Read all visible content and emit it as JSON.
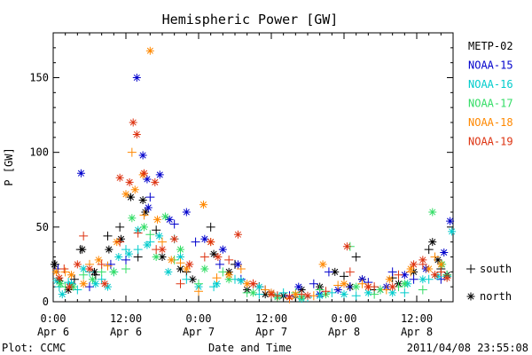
{
  "chart_data": {
    "type": "scatter",
    "title": "Hemispheric Power [GW]",
    "ylabel": "P [GW]",
    "xlabel": "Date and Time",
    "xlim_hours": [
      0,
      66
    ],
    "ylim": [
      0,
      180
    ],
    "yticks": [
      0,
      50,
      100,
      150
    ],
    "xticks": [
      {
        "h": 0,
        "time": "0:00",
        "date": "Apr 6"
      },
      {
        "h": 12,
        "time": "12:00",
        "date": "Apr 6"
      },
      {
        "h": 24,
        "time": "0:00",
        "date": "Apr 7"
      },
      {
        "h": 36,
        "time": "12:00",
        "date": "Apr 7"
      },
      {
        "h": 48,
        "time": "0:00",
        "date": "Apr 8"
      },
      {
        "h": 60,
        "time": "12:00",
        "date": "Apr 8"
      }
    ],
    "footer_left": "Plot: CCMC",
    "footer_right": "2011/04/08 23:55:08",
    "legend_markers": [
      {
        "symbol": "+",
        "label": "south"
      },
      {
        "symbol": "*",
        "label": "north"
      }
    ],
    "series": [
      {
        "name": "METP-02",
        "color": "#000000",
        "south": [
          [
            0.3,
            25
          ],
          [
            3.5,
            15
          ],
          [
            4.5,
            35
          ],
          [
            7,
            18
          ],
          [
            9,
            44
          ],
          [
            11,
            50
          ],
          [
            14,
            30
          ],
          [
            17,
            48
          ],
          [
            22,
            20
          ],
          [
            26,
            50
          ],
          [
            30,
            25
          ],
          [
            34,
            10
          ],
          [
            40,
            3
          ],
          [
            48,
            17
          ],
          [
            50,
            30
          ],
          [
            53,
            8
          ],
          [
            56,
            16
          ],
          [
            62,
            35
          ],
          [
            64,
            22
          ]
        ],
        "north": [
          [
            0.2,
            25
          ],
          [
            1,
            14
          ],
          [
            2.5,
            8
          ],
          [
            4.8,
            35
          ],
          [
            6.8,
            20
          ],
          [
            9.2,
            35
          ],
          [
            11.2,
            42
          ],
          [
            12.8,
            70
          ],
          [
            14.8,
            68
          ],
          [
            15.2,
            60
          ],
          [
            18,
            30
          ],
          [
            21,
            22
          ],
          [
            23,
            15
          ],
          [
            26.5,
            32
          ],
          [
            29,
            20
          ],
          [
            32,
            8
          ],
          [
            35,
            5
          ],
          [
            38,
            4
          ],
          [
            41,
            8
          ],
          [
            44,
            10
          ],
          [
            46.5,
            20
          ],
          [
            49,
            10
          ],
          [
            51,
            15
          ],
          [
            54,
            8
          ],
          [
            57,
            12
          ],
          [
            59.5,
            20
          ],
          [
            62.6,
            40
          ],
          [
            63.5,
            28
          ],
          [
            65,
            18
          ]
        ]
      },
      {
        "name": "NOAA-15",
        "color": "#0000cc",
        "south": [
          [
            0.8,
            22
          ],
          [
            3,
            12
          ],
          [
            6,
            10
          ],
          [
            9.5,
            25
          ],
          [
            12,
            28
          ],
          [
            16,
            70
          ],
          [
            20,
            52
          ],
          [
            23.5,
            40
          ],
          [
            27.5,
            25
          ],
          [
            31,
            15
          ],
          [
            35,
            8
          ],
          [
            39,
            4
          ],
          [
            43,
            12
          ],
          [
            45.5,
            20
          ],
          [
            49,
            10
          ],
          [
            52,
            13
          ],
          [
            56,
            20
          ],
          [
            59.5,
            15
          ],
          [
            64,
            15
          ]
        ],
        "north": [
          [
            4.6,
            86
          ],
          [
            13.8,
            150
          ],
          [
            14.8,
            98
          ],
          [
            15.5,
            82
          ],
          [
            17.6,
            85
          ],
          [
            15.7,
            63
          ],
          [
            19.2,
            55
          ],
          [
            22,
            60
          ],
          [
            25,
            42
          ],
          [
            28,
            35
          ],
          [
            30.5,
            25
          ],
          [
            36,
            6
          ],
          [
            40.5,
            10
          ],
          [
            44,
            5
          ],
          [
            47,
            8
          ],
          [
            51,
            15
          ],
          [
            55,
            10
          ],
          [
            58,
            18
          ],
          [
            61.5,
            22
          ],
          [
            64.5,
            33
          ],
          [
            65.5,
            54
          ]
        ]
      },
      {
        "name": "NOAA-16",
        "color": "#00cccc",
        "south": [
          [
            1,
            10
          ],
          [
            2.5,
            13
          ],
          [
            4,
            8
          ],
          [
            6,
            20
          ],
          [
            8,
            15
          ],
          [
            10,
            20
          ],
          [
            12,
            35
          ],
          [
            14,
            35
          ],
          [
            16,
            40
          ],
          [
            20,
            42
          ],
          [
            22,
            15
          ],
          [
            26.5,
            10
          ],
          [
            30,
            15
          ],
          [
            34,
            5
          ],
          [
            38,
            6
          ],
          [
            42,
            3
          ],
          [
            46,
            6
          ],
          [
            50,
            4
          ],
          [
            54,
            8
          ],
          [
            58,
            6
          ],
          [
            62,
            15
          ],
          [
            65,
            17
          ]
        ],
        "north": [
          [
            0.6,
            14
          ],
          [
            1.5,
            5
          ],
          [
            3,
            12
          ],
          [
            5,
            22
          ],
          [
            7,
            12
          ],
          [
            9,
            10
          ],
          [
            10.8,
            30
          ],
          [
            12.5,
            32
          ],
          [
            14,
            48
          ],
          [
            15.5,
            38
          ],
          [
            17.5,
            44
          ],
          [
            19,
            20
          ],
          [
            21,
            30
          ],
          [
            24,
            10
          ],
          [
            27,
            12
          ],
          [
            31,
            14
          ],
          [
            34,
            10
          ],
          [
            37,
            4
          ],
          [
            41,
            2
          ],
          [
            44,
            4
          ],
          [
            48,
            5
          ],
          [
            52,
            6
          ],
          [
            56,
            6
          ],
          [
            58.5,
            12
          ],
          [
            61,
            15
          ],
          [
            63.5,
            17
          ],
          [
            65.8,
            47
          ]
        ]
      },
      {
        "name": "NOAA-17",
        "color": "#33dd66",
        "south": [
          [
            2,
            10
          ],
          [
            5,
            18
          ],
          [
            8,
            20
          ],
          [
            12,
            22
          ],
          [
            16,
            45
          ],
          [
            20,
            28
          ],
          [
            24,
            12
          ],
          [
            28,
            20
          ],
          [
            32,
            6
          ],
          [
            36,
            5
          ],
          [
            40,
            6
          ],
          [
            44,
            8
          ],
          [
            49,
            37
          ],
          [
            53,
            5
          ],
          [
            57,
            10
          ],
          [
            61,
            8
          ],
          [
            65,
            18
          ]
        ],
        "north": [
          [
            1.2,
            12
          ],
          [
            3.3,
            10
          ],
          [
            6.5,
            15
          ],
          [
            10,
            20
          ],
          [
            13,
            56
          ],
          [
            15,
            50
          ],
          [
            17,
            30
          ],
          [
            18.5,
            57
          ],
          [
            21,
            35
          ],
          [
            25,
            22
          ],
          [
            29,
            15
          ],
          [
            33,
            6
          ],
          [
            37,
            3
          ],
          [
            41,
            3
          ],
          [
            45,
            5
          ],
          [
            50,
            10
          ],
          [
            54,
            8
          ],
          [
            58,
            12
          ],
          [
            62.6,
            60
          ],
          [
            64.2,
            25
          ]
        ]
      },
      {
        "name": "NOAA-18",
        "color": "#ff8800",
        "south": [
          [
            2,
            20
          ],
          [
            6,
            25
          ],
          [
            9,
            24
          ],
          [
            13,
            100
          ],
          [
            15,
            58
          ],
          [
            18,
            40
          ],
          [
            21,
            26
          ],
          [
            24,
            7
          ],
          [
            27,
            16
          ],
          [
            31,
            22
          ],
          [
            35,
            8
          ],
          [
            39,
            2
          ],
          [
            43,
            4
          ],
          [
            47,
            11
          ],
          [
            51,
            12
          ],
          [
            55,
            8
          ],
          [
            59,
            20
          ],
          [
            63,
            30
          ]
        ],
        "north": [
          [
            0.5,
            20
          ],
          [
            3,
            18
          ],
          [
            5,
            12
          ],
          [
            7.5,
            28
          ],
          [
            10.5,
            40
          ],
          [
            12,
            72
          ],
          [
            13.5,
            75
          ],
          [
            14.8,
            85
          ],
          [
            16,
            168
          ],
          [
            17.2,
            55
          ],
          [
            19.5,
            28
          ],
          [
            22,
            22
          ],
          [
            24.8,
            65
          ],
          [
            26,
            40
          ],
          [
            29,
            18
          ],
          [
            32,
            12
          ],
          [
            36,
            6
          ],
          [
            40,
            5
          ],
          [
            44.5,
            25
          ],
          [
            48,
            12
          ],
          [
            52,
            10
          ],
          [
            55.5,
            15
          ],
          [
            59,
            22
          ],
          [
            62,
            22
          ],
          [
            64,
            25
          ]
        ]
      },
      {
        "name": "NOAA-19",
        "color": "#dd3311",
        "south": [
          [
            1.8,
            22
          ],
          [
            5,
            44
          ],
          [
            8,
            25
          ],
          [
            11,
            40
          ],
          [
            14,
            46
          ],
          [
            17,
            35
          ],
          [
            21,
            12
          ],
          [
            25,
            30
          ],
          [
            29,
            28
          ],
          [
            33,
            12
          ],
          [
            37,
            4
          ],
          [
            41,
            5
          ],
          [
            45,
            7
          ],
          [
            49,
            20
          ],
          [
            53,
            10
          ],
          [
            57,
            18
          ],
          [
            61,
            25
          ],
          [
            64,
            20
          ]
        ],
        "north": [
          [
            1,
            16
          ],
          [
            2.7,
            10
          ],
          [
            4,
            25
          ],
          [
            6,
            22
          ],
          [
            8.5,
            12
          ],
          [
            11,
            83
          ],
          [
            12.6,
            80
          ],
          [
            13.2,
            120
          ],
          [
            13.8,
            112
          ],
          [
            15,
            86
          ],
          [
            16.8,
            80
          ],
          [
            18,
            35
          ],
          [
            20,
            42
          ],
          [
            22.5,
            25
          ],
          [
            26,
            40
          ],
          [
            27.2,
            30
          ],
          [
            30.5,
            45
          ],
          [
            33,
            12
          ],
          [
            36,
            5
          ],
          [
            39,
            3
          ],
          [
            42,
            4
          ],
          [
            48.5,
            37
          ],
          [
            52,
            10
          ],
          [
            56,
            10
          ],
          [
            59.5,
            25
          ],
          [
            61,
            28
          ],
          [
            63,
            18
          ],
          [
            65,
            16
          ]
        ]
      }
    ]
  }
}
